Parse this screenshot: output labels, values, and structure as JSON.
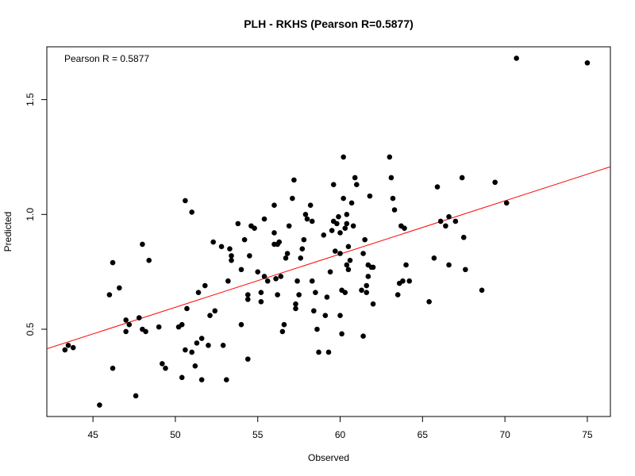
{
  "chart_data": {
    "type": "scatter",
    "title": "PLH - RKHS (Pearson R=0.5877)",
    "xlabel": "Observed",
    "ylabel": "Predicted",
    "annotation": "Pearson R = 0.5877",
    "xlim": [
      42.2,
      76.4
    ],
    "ylim": [
      0.12,
      1.73
    ],
    "x_ticks": [
      45,
      50,
      55,
      60,
      65,
      70,
      75
    ],
    "y_ticks": [
      0.5,
      1.0,
      1.5
    ],
    "x_tick_labels": [
      "45",
      "50",
      "55",
      "60",
      "65",
      "70",
      "75"
    ],
    "y_tick_labels": [
      "0.5",
      "1.0",
      "1.5"
    ],
    "grid": false,
    "point_color": "#000000",
    "line_color": "#ff0000",
    "regression_line": {
      "intercept": -0.5633,
      "slope": 0.02318
    },
    "x": [
      43.3,
      43.5,
      43.8,
      45.4,
      46.0,
      46.2,
      46.2,
      46.6,
      47.0,
      47.0,
      47.2,
      47.6,
      47.8,
      48.0,
      48.0,
      48.2,
      48.4,
      49.0,
      49.2,
      49.4,
      50.2,
      50.4,
      50.4,
      50.6,
      50.6,
      50.7,
      51.0,
      51.0,
      51.2,
      51.3,
      51.4,
      51.6,
      51.6,
      51.8,
      52.0,
      52.1,
      52.3,
      52.4,
      52.8,
      52.9,
      53.1,
      53.2,
      53.3,
      53.4,
      53.4,
      53.8,
      54.0,
      54.0,
      54.2,
      54.4,
      54.4,
      54.4,
      54.5,
      54.6,
      54.8,
      55.0,
      55.2,
      55.2,
      55.4,
      55.4,
      55.6,
      56.0,
      56.0,
      56.0,
      56.1,
      56.2,
      56.2,
      56.3,
      56.4,
      56.5,
      56.6,
      56.7,
      56.8,
      56.9,
      57.1,
      57.2,
      57.3,
      57.3,
      57.4,
      57.5,
      57.6,
      57.7,
      57.8,
      57.9,
      58.0,
      58.2,
      58.3,
      58.3,
      58.4,
      58.5,
      58.6,
      58.7,
      59.0,
      59.1,
      59.2,
      59.3,
      59.4,
      59.5,
      59.6,
      59.6,
      59.7,
      59.8,
      59.9,
      60.0,
      60.0,
      60.0,
      60.1,
      60.1,
      60.2,
      60.2,
      60.3,
      60.3,
      60.4,
      60.4,
      60.4,
      60.5,
      60.5,
      60.6,
      60.7,
      60.8,
      60.9,
      61.0,
      61.3,
      61.4,
      61.4,
      61.5,
      61.6,
      61.6,
      61.7,
      61.7,
      61.8,
      61.9,
      62.0,
      62.0,
      63.0,
      63.1,
      63.2,
      63.3,
      63.5,
      63.6,
      63.7,
      63.8,
      63.9,
      64.0,
      64.2,
      65.4,
      65.7,
      65.9,
      66.1,
      66.4,
      66.6,
      66.6,
      67.0,
      67.4,
      67.5,
      67.6,
      68.6,
      69.4,
      70.1,
      70.7,
      75.0
    ],
    "y": [
      0.41,
      0.43,
      0.42,
      0.17,
      0.65,
      0.79,
      0.33,
      0.68,
      0.54,
      0.49,
      0.52,
      0.21,
      0.55,
      0.5,
      0.87,
      0.49,
      0.8,
      0.51,
      0.35,
      0.33,
      0.51,
      0.52,
      0.29,
      0.41,
      1.06,
      0.59,
      1.01,
      0.4,
      0.34,
      0.44,
      0.66,
      0.46,
      0.28,
      0.69,
      0.43,
      0.56,
      0.88,
      0.58,
      0.86,
      0.43,
      0.28,
      0.71,
      0.85,
      0.82,
      0.8,
      0.96,
      0.52,
      0.76,
      0.89,
      0.65,
      0.63,
      0.37,
      0.82,
      0.95,
      0.94,
      0.75,
      0.66,
      0.62,
      0.73,
      0.98,
      0.71,
      1.04,
      0.92,
      0.87,
      0.72,
      0.87,
      0.65,
      0.88,
      0.73,
      0.49,
      0.52,
      0.81,
      0.83,
      0.95,
      1.07,
      1.15,
      0.61,
      0.59,
      0.71,
      0.65,
      0.81,
      0.85,
      0.89,
      1.0,
      0.98,
      1.04,
      0.97,
      0.71,
      0.58,
      0.66,
      0.5,
      0.4,
      0.91,
      0.56,
      0.64,
      0.4,
      0.75,
      0.93,
      1.13,
      0.97,
      0.84,
      0.96,
      0.99,
      0.83,
      0.92,
      0.56,
      0.48,
      0.67,
      1.07,
      1.25,
      0.66,
      0.94,
      0.78,
      1.0,
      0.96,
      0.76,
      0.86,
      0.8,
      1.05,
      0.95,
      1.16,
      1.13,
      0.67,
      0.47,
      0.83,
      0.89,
      0.69,
      0.66,
      0.78,
      0.73,
      1.08,
      0.77,
      0.61,
      0.77,
      1.25,
      1.16,
      1.07,
      1.02,
      0.65,
      0.7,
      0.95,
      0.71,
      0.94,
      0.78,
      0.71,
      0.62,
      0.81,
      1.12,
      0.97,
      0.95,
      0.78,
      0.99,
      0.97,
      1.16,
      0.9,
      0.76,
      0.67,
      1.14,
      1.05,
      1.68,
      1.66
    ]
  }
}
